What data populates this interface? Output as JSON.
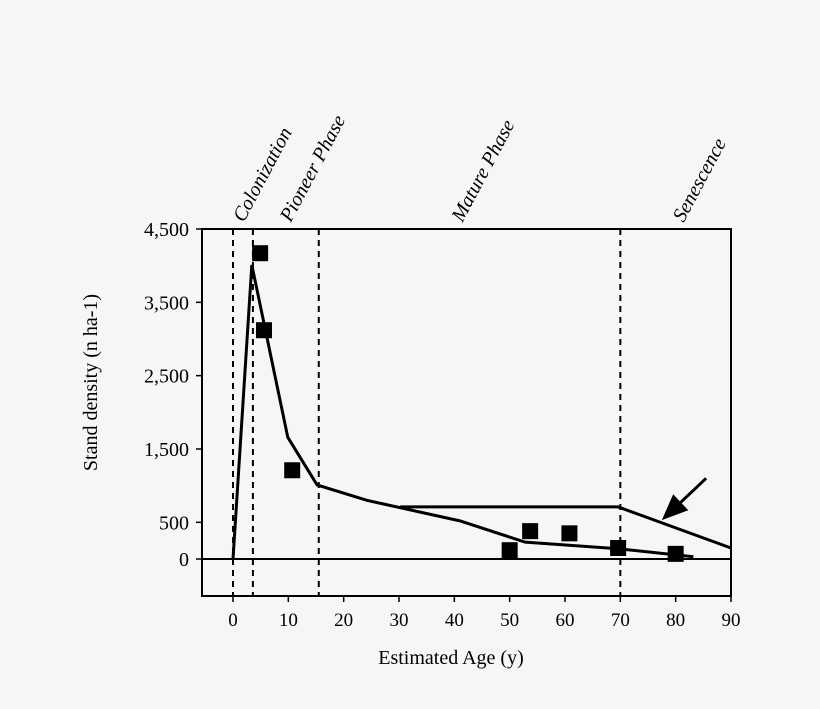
{
  "chart_data": {
    "type": "line",
    "xlabel": "Estimated Age (y)",
    "ylabel": "Stand density (n ha-1)",
    "xlim": [
      -5.6,
      90
    ],
    "ylim": [
      -500,
      4500
    ],
    "x_ticks": [
      0,
      10,
      20,
      30,
      40,
      50,
      60,
      70,
      80,
      90
    ],
    "y_ticks": [
      {
        "value": 4500,
        "label": "4,500"
      },
      {
        "value": 3500,
        "label": "3,500"
      },
      {
        "value": 2500,
        "label": "2,500"
      },
      {
        "value": 1500,
        "label": "1,500"
      },
      {
        "value": 500,
        "label": "500"
      },
      {
        "value": 0,
        "label": "0"
      }
    ],
    "phases": [
      {
        "label": "Colonization",
        "x": 0
      },
      {
        "label": "Pioneer Phase",
        "x": 3.6
      },
      {
        "label": "Mature Phase",
        "x": 15.5
      },
      {
        "label": "Senescence",
        "x": 70
      }
    ],
    "phase_label_positions": [
      0.5,
      9,
      40,
      80
    ],
    "grid": false,
    "legend": "none",
    "series": [
      {
        "type": "scatter",
        "marker": "square",
        "points": [
          [
            4.9,
            4170
          ],
          [
            5.6,
            3120
          ],
          [
            10.7,
            1210
          ],
          [
            50,
            120
          ],
          [
            53.7,
            380
          ],
          [
            60.8,
            350
          ],
          [
            69.6,
            150
          ],
          [
            80,
            70
          ]
        ]
      },
      {
        "type": "line",
        "points": [
          [
            0,
            0
          ],
          [
            3.4,
            4010
          ],
          [
            9.9,
            1660
          ],
          [
            15.2,
            1010
          ],
          [
            24.2,
            800
          ],
          [
            41,
            520
          ],
          [
            52.8,
            230
          ],
          [
            62,
            180
          ],
          [
            69.6,
            140
          ],
          [
            83.2,
            30
          ]
        ]
      },
      {
        "type": "line",
        "points": [
          [
            30.2,
            710
          ],
          [
            69.6,
            710
          ],
          [
            90,
            150
          ]
        ]
      }
    ],
    "annotations": [
      {
        "type": "arrow",
        "from": [
          85.5,
          1100
        ],
        "to": [
          77.5,
          530
        ]
      }
    ]
  }
}
